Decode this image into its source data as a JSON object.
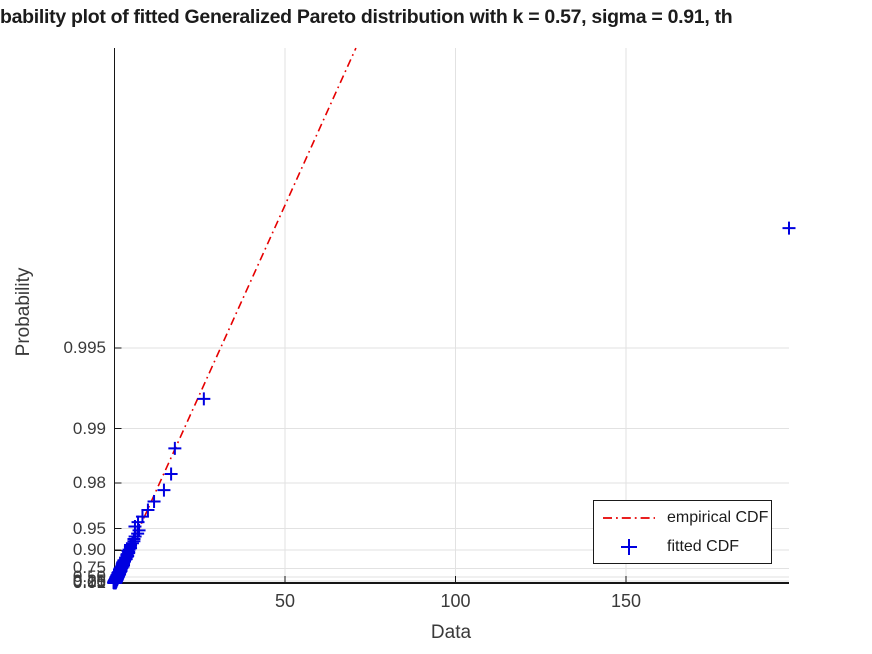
{
  "chart_data": {
    "type": "scatter",
    "subtype": "probability-plot",
    "title": "bability plot of fitted Generalized Pareto distribution with k = 0.57, sigma = 0.91, th",
    "xlabel": "Data",
    "ylabel": "Probability",
    "x_ticks": [
      50,
      100,
      150
    ],
    "x_tick_labels": [
      "50",
      "100",
      "150"
    ],
    "xlim": [
      0,
      198
    ],
    "y_scale": "generalized-pareto-quantile (fitted quantile transform, linear in Q(p))",
    "y_ticks": [
      {
        "p": 0.01,
        "label": "0.01"
      },
      {
        "p": 0.05,
        "label": "0.05"
      },
      {
        "p": 0.1,
        "label": "0.10"
      },
      {
        "p": 0.25,
        "label": "0.25"
      },
      {
        "p": 0.5,
        "label": "0.50"
      },
      {
        "p": 0.75,
        "label": "0.75"
      },
      {
        "p": 0.9,
        "label": "0.90"
      },
      {
        "p": 0.95,
        "label": "0.95"
      },
      {
        "p": 0.98,
        "label": "0.98"
      },
      {
        "p": 0.99,
        "label": "0.99"
      },
      {
        "p": 0.995,
        "label": "0.995"
      }
    ],
    "distribution": {
      "name": "Generalized Pareto",
      "k": 0.57,
      "sigma": 0.91
    },
    "grid": true,
    "colors": {
      "empirical": "#e60000",
      "fitted": "#0000e0",
      "grid": "#e2e2e2",
      "axis": "#161616",
      "text": "#3a3a3a"
    },
    "legend": {
      "position": "lower right",
      "entries": [
        {
          "label": "empirical CDF",
          "marker": "dash-dot-line",
          "color": "#e60000"
        },
        {
          "label": "fitted CDF",
          "marker": "plus",
          "color": "#0000e0"
        }
      ]
    },
    "series": [
      {
        "name": "empirical CDF",
        "type": "line",
        "style": "dash-dot",
        "color": "#e60000",
        "description": "straight reference line, data value equals fitted quantile",
        "line_quantile_span": [
          0,
          70.8
        ]
      },
      {
        "name": "fitted CDF",
        "type": "scatter",
        "marker": "+",
        "color": "#0000e0",
        "points": [
          [
            6.0,
            0.9525
          ],
          [
            6.9,
            0.9575
          ],
          [
            8.2,
            0.9625
          ],
          [
            9.8,
            0.9675
          ],
          [
            11.6,
            0.9725
          ],
          [
            14.5,
            0.9775
          ],
          [
            16.6,
            0.9825
          ],
          [
            17.7,
            0.9875
          ],
          [
            26.2,
            0.9925
          ],
          [
            197.8,
            0.9975
          ]
        ],
        "dense_cluster": {
          "description": "dense band of overlapping + markers along the reference line near the origin",
          "n": 190,
          "p_start": 0.0025,
          "p_step": 0.005,
          "x_rule": "GP quantile of p with small jitter"
        }
      }
    ]
  }
}
